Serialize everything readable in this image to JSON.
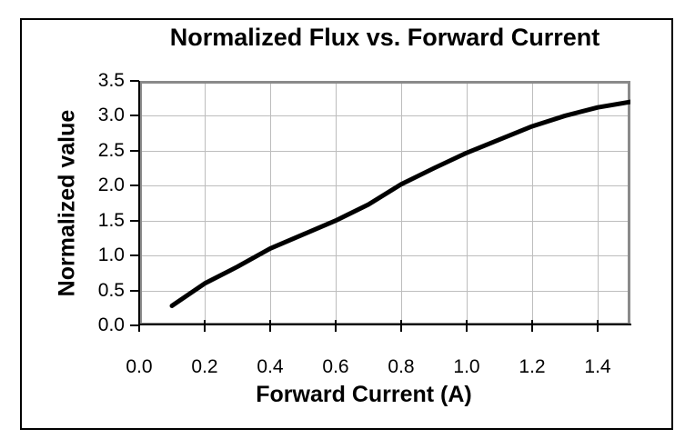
{
  "figure": {
    "title": "Normalized Flux vs. Forward Current",
    "x_axis_title": "Forward Current (A)",
    "y_axis_title": "Normalized value"
  },
  "style": {
    "curve_color": "#000000",
    "gridline_color": "#bdbdbd",
    "plot_border_color": "#8a8a8a",
    "axis_color": "#000000",
    "frame_color": "#000000",
    "background": "#ffffff"
  },
  "chart_data": {
    "type": "line",
    "title": "Normalized Flux vs. Forward Current",
    "xlabel": "Forward Current (A)",
    "ylabel": "Normalized value",
    "xlim": [
      0.0,
      1.5
    ],
    "ylim": [
      0.0,
      3.5
    ],
    "x_tick_labels": [
      "0.0",
      "0.2",
      "0.4",
      "0.6",
      "0.8",
      "1.0",
      "1.2",
      "1.4"
    ],
    "y_tick_labels": [
      "0.0",
      "0.5",
      "1.0",
      "1.5",
      "2.0",
      "2.5",
      "3.0",
      "3.5"
    ],
    "grid": true,
    "legend": false,
    "series": [
      {
        "name": "Normalized Flux",
        "x": [
          0.1,
          0.2,
          0.3,
          0.4,
          0.5,
          0.6,
          0.7,
          0.8,
          0.9,
          1.0,
          1.1,
          1.2,
          1.3,
          1.4,
          1.5
        ],
        "y": [
          0.28,
          0.6,
          0.84,
          1.1,
          1.3,
          1.5,
          1.73,
          2.02,
          2.25,
          2.47,
          2.66,
          2.85,
          3.0,
          3.12,
          3.2
        ],
        "color": "#000000",
        "line_width": 5
      }
    ]
  }
}
